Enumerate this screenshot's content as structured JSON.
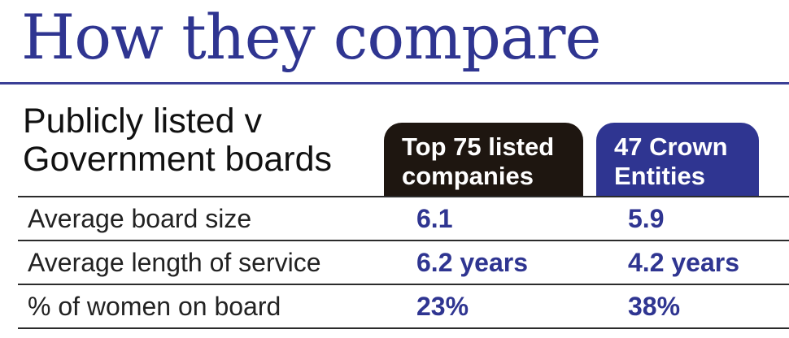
{
  "title": "How they compare",
  "subtitle": [
    "Publicly listed v",
    "Government boards"
  ],
  "columns": [
    {
      "lines": [
        "Top 75 listed",
        "companies"
      ],
      "color": "#1e1610"
    },
    {
      "lines": [
        "47 Crown",
        "Entities"
      ],
      "color": "#2f3591"
    }
  ],
  "rows": [
    {
      "label": "Average board size",
      "listed": "6.1",
      "crown": "5.9"
    },
    {
      "label": "Average length of service",
      "listed": "6.2 years",
      "crown": "4.2 years"
    },
    {
      "label": "% of women on board",
      "listed": "23%",
      "crown": "38%"
    }
  ],
  "colors": {
    "accent": "#2f3591",
    "dark_header": "#1e1610"
  }
}
